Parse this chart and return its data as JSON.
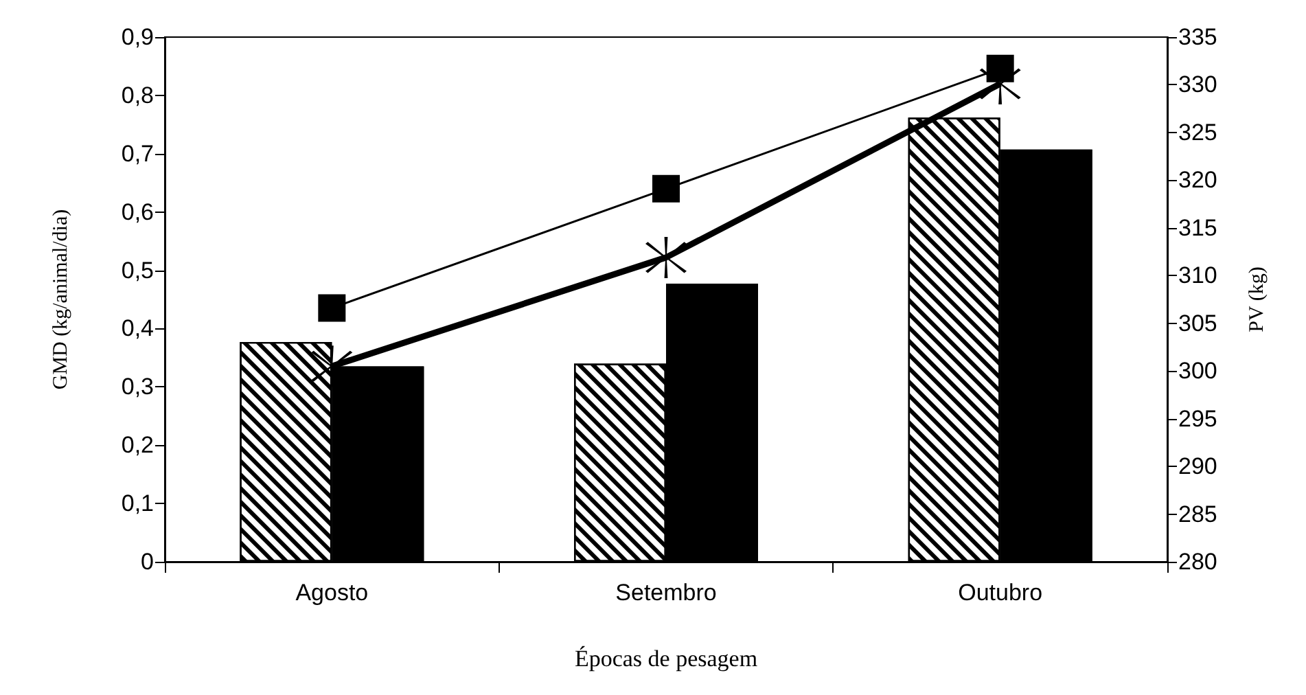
{
  "chart_data": {
    "type": "bar",
    "xlabel": "Épocas de pesagem",
    "ylabel": "GMD (kg/animal/dia)",
    "y2label": "PV (kg)",
    "categories": [
      "Agosto",
      "Setembro",
      "Outubro"
    ],
    "series": [
      {
        "color": "#ffffff",
        "values": [
          0.377,
          0.34,
          0.762
        ]
      },
      {
        "color": "#000000",
        "values": [
          0.335,
          0.477,
          0.707
        ]
      },
      {
        "type": "line",
        "axis": "y2",
        "color": "#000000",
        "marker": "square",
        "values": [
          306.6,
          319.1,
          331.7
        ]
      },
      {
        "type": "line",
        "axis": "y2",
        "color": "#000000",
        "marker": "cross",
        "values": [
          300.5,
          311.9,
          330.1
        ]
      }
    ],
    "ylim": [
      0,
      0.9
    ],
    "yticks": [
      {
        "value": 0,
        "label": "0"
      },
      {
        "value": 0.1,
        "label": "0,1"
      },
      {
        "value": 0.2,
        "label": "0,2"
      },
      {
        "value": 0.3,
        "label": "0,3"
      },
      {
        "value": 0.4,
        "label": "0,4"
      },
      {
        "value": 0.5,
        "label": "0,5"
      },
      {
        "value": 0.6,
        "label": "0,6"
      },
      {
        "value": 0.7,
        "label": "0,7"
      },
      {
        "value": 0.8,
        "label": "0,8"
      },
      {
        "value": 0.9,
        "label": "0,9"
      }
    ],
    "y2lim": [
      280,
      335
    ],
    "y2ticks": [
      280,
      285,
      290,
      295,
      300,
      305,
      310,
      315,
      320,
      325,
      330,
      335
    ],
    "grid": false
  }
}
